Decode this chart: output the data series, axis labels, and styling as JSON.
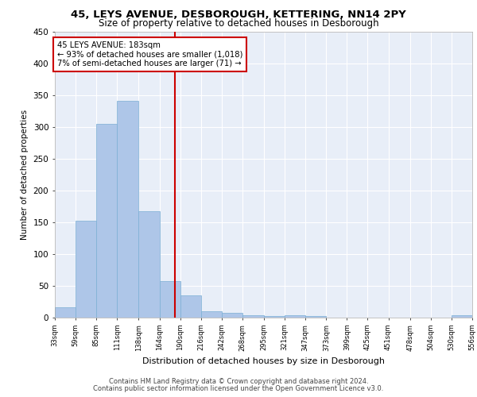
{
  "title1": "45, LEYS AVENUE, DESBOROUGH, KETTERING, NN14 2PY",
  "title2": "Size of property relative to detached houses in Desborough",
  "xlabel": "Distribution of detached houses by size in Desborough",
  "ylabel": "Number of detached properties",
  "annotation_line1": "45 LEYS AVENUE: 183sqm",
  "annotation_line2": "← 93% of detached houses are smaller (1,018)",
  "annotation_line3": "7% of semi-detached houses are larger (71) →",
  "footer1": "Contains HM Land Registry data © Crown copyright and database right 2024.",
  "footer2": "Contains public sector information licensed under the Open Government Licence v3.0.",
  "bar_edges": [
    33,
    59,
    85,
    111,
    138,
    164,
    190,
    216,
    242,
    268,
    295,
    321,
    347,
    373,
    399,
    425,
    451,
    478,
    504,
    530,
    556
  ],
  "bar_heights": [
    16,
    153,
    305,
    341,
    167,
    57,
    35,
    10,
    7,
    4,
    3,
    4,
    3,
    0,
    0,
    0,
    0,
    0,
    0,
    4
  ],
  "bar_color": "#aec6e8",
  "bar_edge_color": "#7bafd4",
  "vline_x": 183,
  "vline_color": "#cc0000",
  "annotation_box_color": "#cc0000",
  "background_color": "#e8eef8",
  "ylim": [
    0,
    450
  ],
  "xlim": [
    33,
    556
  ],
  "tick_labels": [
    "33sqm",
    "59sqm",
    "85sqm",
    "111sqm",
    "138sqm",
    "164sqm",
    "190sqm",
    "216sqm",
    "242sqm",
    "268sqm",
    "295sqm",
    "321sqm",
    "347sqm",
    "373sqm",
    "399sqm",
    "425sqm",
    "451sqm",
    "478sqm",
    "504sqm",
    "530sqm",
    "556sqm"
  ],
  "yticks": [
    0,
    50,
    100,
    150,
    200,
    250,
    300,
    350,
    400,
    450
  ]
}
